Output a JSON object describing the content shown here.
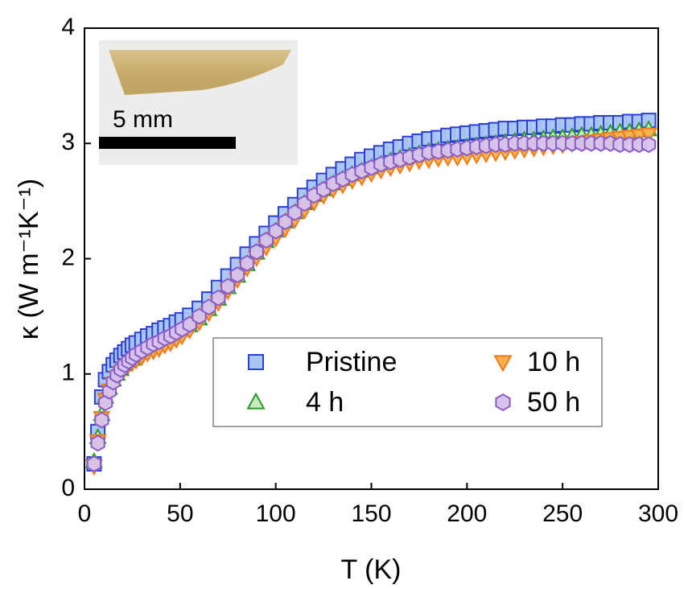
{
  "chart_data": {
    "type": "scatter",
    "x_label": "T (K)",
    "y_label": "κ (W m⁻¹K⁻¹)",
    "inset_label": "5 mm",
    "xlim": [
      0,
      300
    ],
    "xticks": [
      0,
      50,
      100,
      150,
      200,
      250,
      300
    ],
    "ylim": [
      0,
      4
    ],
    "yticks": [
      0,
      1,
      2,
      3,
      4
    ],
    "grid": false,
    "legend_position": "lower right",
    "x": [
      5,
      7,
      9,
      11,
      13,
      15,
      17,
      19,
      21,
      23,
      25,
      27,
      30,
      33,
      36,
      39,
      42,
      45,
      48,
      51,
      55,
      60,
      65,
      70,
      75,
      80,
      85,
      90,
      95,
      100,
      105,
      110,
      115,
      120,
      125,
      130,
      135,
      140,
      145,
      150,
      155,
      160,
      165,
      170,
      175,
      180,
      185,
      190,
      195,
      200,
      205,
      210,
      215,
      220,
      225,
      230,
      235,
      240,
      245,
      250,
      255,
      260,
      265,
      270,
      275,
      280,
      285,
      290,
      295
    ],
    "series": [
      {
        "name": "Pristine",
        "marker": "square",
        "color": "#a9c6f2",
        "edge_color": "#2b3fd6",
        "values": [
          0.22,
          0.5,
          0.8,
          0.95,
          1.02,
          1.08,
          1.12,
          1.16,
          1.19,
          1.22,
          1.25,
          1.27,
          1.3,
          1.33,
          1.35,
          1.38,
          1.4,
          1.42,
          1.45,
          1.47,
          1.51,
          1.57,
          1.65,
          1.75,
          1.85,
          1.95,
          2.04,
          2.13,
          2.22,
          2.31,
          2.39,
          2.47,
          2.55,
          2.62,
          2.68,
          2.73,
          2.78,
          2.82,
          2.86,
          2.89,
          2.92,
          2.95,
          2.97,
          3.0,
          3.02,
          3.04,
          3.05,
          3.07,
          3.08,
          3.09,
          3.1,
          3.11,
          3.12,
          3.13,
          3.13,
          3.14,
          3.14,
          3.15,
          3.15,
          3.16,
          3.16,
          3.17,
          3.17,
          3.18,
          3.18,
          3.18,
          3.19,
          3.19,
          3.2
        ]
      },
      {
        "name": "4 h",
        "marker": "triangle-up",
        "color": "#c8ecc0",
        "edge_color": "#2a9a2a",
        "values": [
          0.24,
          0.45,
          0.65,
          0.8,
          0.88,
          0.95,
          1.0,
          1.04,
          1.08,
          1.11,
          1.13,
          1.16,
          1.19,
          1.22,
          1.24,
          1.27,
          1.29,
          1.32,
          1.35,
          1.38,
          1.42,
          1.48,
          1.56,
          1.65,
          1.75,
          1.85,
          1.95,
          2.05,
          2.15,
          2.24,
          2.32,
          2.4,
          2.48,
          2.55,
          2.6,
          2.65,
          2.69,
          2.73,
          2.76,
          2.79,
          2.82,
          2.85,
          2.87,
          2.89,
          2.91,
          2.93,
          2.94,
          2.95,
          2.96,
          2.97,
          2.98,
          2.99,
          3.0,
          3.01,
          3.02,
          3.03,
          3.03,
          3.04,
          3.05,
          3.05,
          3.06,
          3.07,
          3.07,
          3.08,
          3.09,
          3.1,
          3.1,
          3.11,
          3.12
        ]
      },
      {
        "name": "10 h",
        "marker": "triangle-down",
        "color": "#f8b04a",
        "edge_color": "#f07a1a",
        "values": [
          0.2,
          0.42,
          0.62,
          0.78,
          0.86,
          0.92,
          0.97,
          1.01,
          1.05,
          1.08,
          1.1,
          1.12,
          1.15,
          1.18,
          1.2,
          1.22,
          1.25,
          1.27,
          1.3,
          1.33,
          1.38,
          1.45,
          1.53,
          1.62,
          1.72,
          1.82,
          1.92,
          2.01,
          2.1,
          2.18,
          2.26,
          2.34,
          2.42,
          2.49,
          2.55,
          2.6,
          2.64,
          2.68,
          2.71,
          2.74,
          2.77,
          2.79,
          2.81,
          2.83,
          2.85,
          2.86,
          2.87,
          2.88,
          2.88,
          2.89,
          2.9,
          2.91,
          2.92,
          2.93,
          2.94,
          2.95,
          2.96,
          2.97,
          2.98,
          2.99,
          3.0,
          3.01,
          3.02,
          3.03,
          3.04,
          3.05,
          3.06,
          3.07,
          3.08
        ]
      },
      {
        "name": "50 h",
        "marker": "hexagon",
        "color": "#d6c4ee",
        "edge_color": "#8a5cc4",
        "values": [
          0.22,
          0.4,
          0.6,
          0.75,
          0.85,
          0.93,
          0.99,
          1.04,
          1.08,
          1.11,
          1.14,
          1.17,
          1.2,
          1.23,
          1.26,
          1.28,
          1.31,
          1.33,
          1.36,
          1.39,
          1.43,
          1.5,
          1.58,
          1.66,
          1.76,
          1.86,
          1.96,
          2.06,
          2.16,
          2.24,
          2.32,
          2.4,
          2.48,
          2.55,
          2.6,
          2.65,
          2.69,
          2.73,
          2.76,
          2.79,
          2.82,
          2.84,
          2.86,
          2.88,
          2.9,
          2.92,
          2.93,
          2.94,
          2.95,
          2.96,
          2.97,
          2.98,
          2.99,
          2.99,
          3.0,
          3.0,
          3.0,
          3.0,
          3.0,
          3.0,
          3.0,
          3.0,
          3.0,
          3.0,
          3.0,
          2.99,
          2.99,
          2.99,
          2.99
        ]
      }
    ]
  }
}
